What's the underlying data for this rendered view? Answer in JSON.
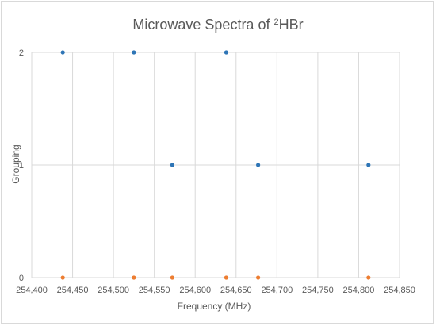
{
  "chart_data": {
    "type": "scatter",
    "title": {
      "prefix": "Microwave Spectra of ",
      "superscript": "2",
      "suffix": "HBr"
    },
    "xlabel": "Frequency (MHz)",
    "ylabel": "Grouping",
    "xlim": [
      254400,
      254850
    ],
    "ylim": [
      0,
      2
    ],
    "x_ticks": [
      "254,400",
      "254,450",
      "254,500",
      "254,550",
      "254,600",
      "254,650",
      "254,700",
      "254,750",
      "254,800",
      "254,850"
    ],
    "y_ticks": [
      "0",
      "1",
      "2"
    ],
    "grid": true,
    "legend": "none",
    "series": [
      {
        "color": "#2e75b6",
        "points": [
          {
            "x": 254438,
            "y": 2
          },
          {
            "x": 254525,
            "y": 2
          },
          {
            "x": 254572,
            "y": 1
          },
          {
            "x": 254638,
            "y": 2
          },
          {
            "x": 254677,
            "y": 1
          },
          {
            "x": 254812,
            "y": 1
          }
        ]
      },
      {
        "color": "#ed7d31",
        "points": [
          {
            "x": 254438,
            "y": 0
          },
          {
            "x": 254525,
            "y": 0
          },
          {
            "x": 254572,
            "y": 0
          },
          {
            "x": 254638,
            "y": 0
          },
          {
            "x": 254677,
            "y": 0
          },
          {
            "x": 254812,
            "y": 0
          }
        ]
      }
    ]
  }
}
